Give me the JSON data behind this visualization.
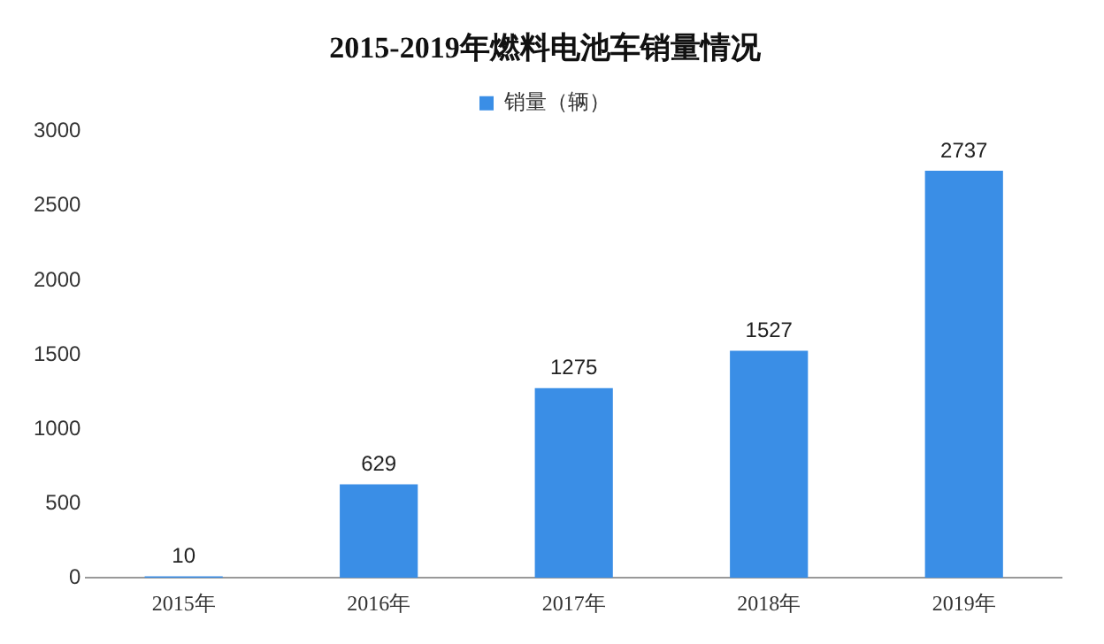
{
  "chart_data": {
    "type": "bar",
    "title": "2015-2019年燃料电池车销量情况",
    "categories": [
      "2015年",
      "2016年",
      "2017年",
      "2018年",
      "2019年"
    ],
    "series": [
      {
        "name": "销量（辆）",
        "color": "#3a8ee6",
        "values": [
          10,
          629,
          1275,
          1527,
          2737
        ]
      }
    ],
    "ylim": [
      0,
      3000
    ],
    "yticks": [
      0,
      500,
      1000,
      1500,
      2000,
      2500,
      3000
    ],
    "grid": false,
    "legend": "top",
    "data_labels": true
  }
}
